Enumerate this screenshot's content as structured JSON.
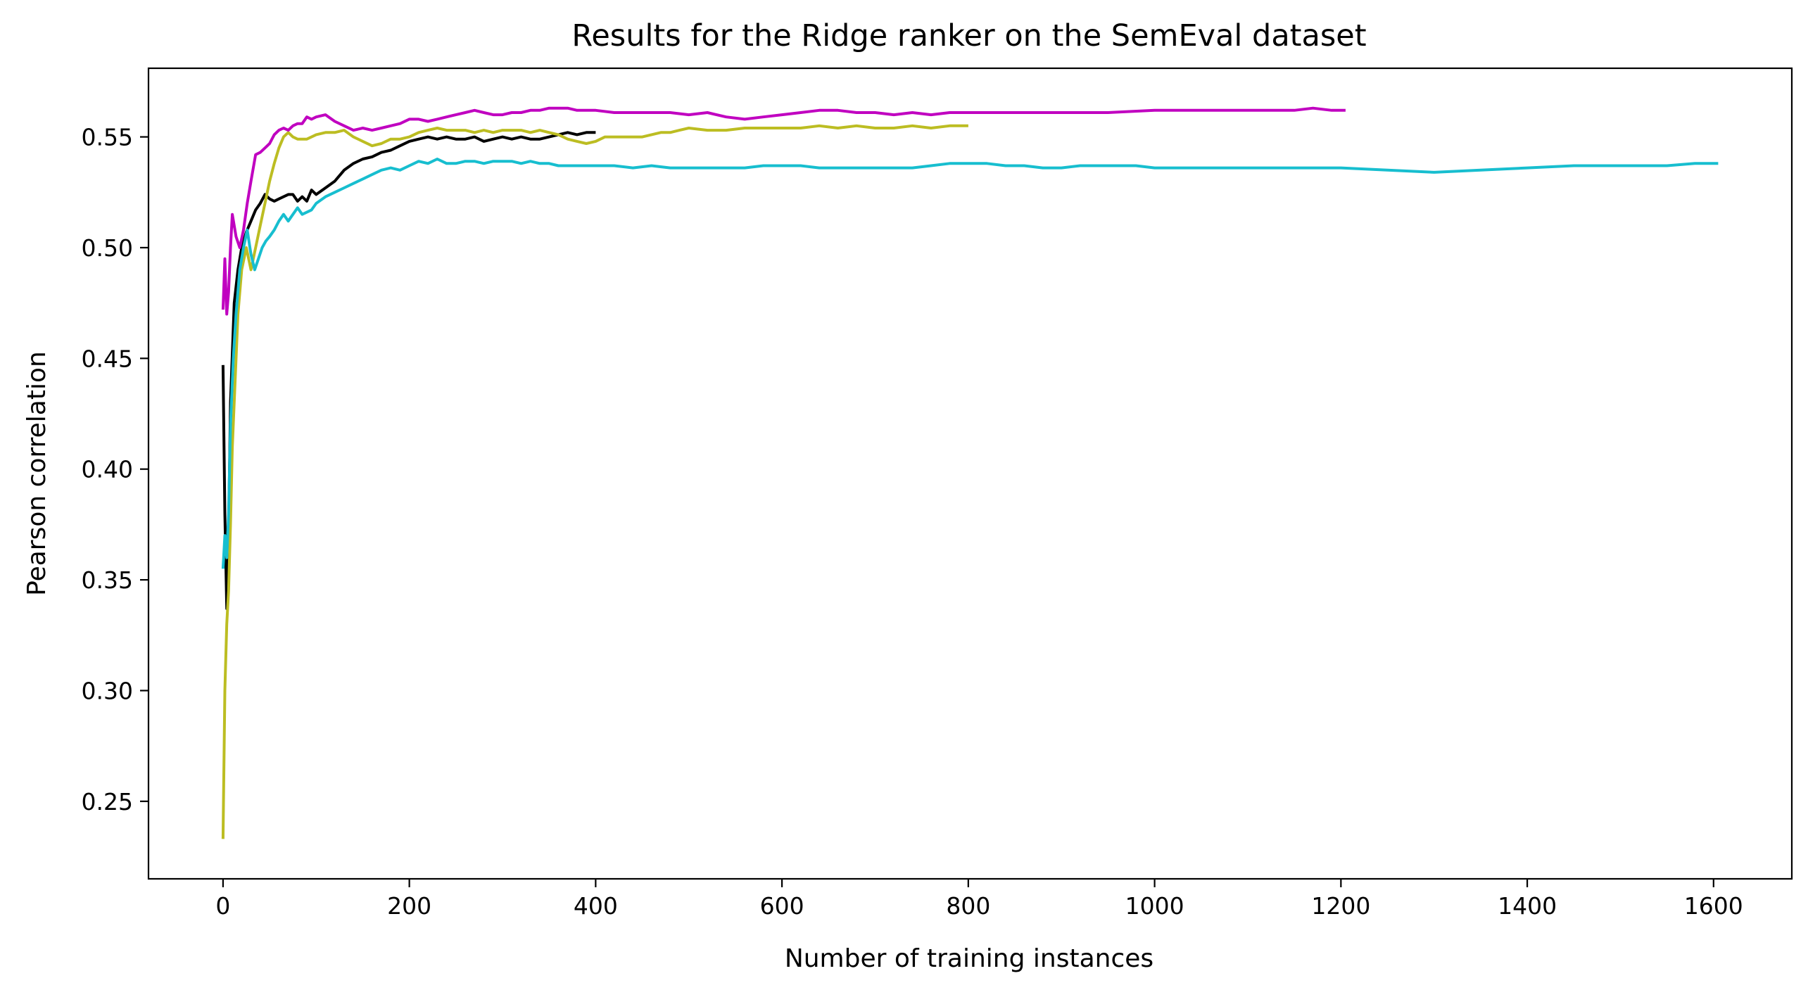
{
  "chart_data": {
    "type": "line",
    "title": "Results for the Ridge ranker on the SemEval dataset",
    "xlabel": "Number of training instances",
    "ylabel": "Pearson correlation",
    "xlim": [
      -80,
      1684
    ],
    "ylim": [
      0.215,
      0.581
    ],
    "xticks": [
      0,
      200,
      400,
      600,
      800,
      1000,
      1200,
      1400,
      1600
    ],
    "yticks": [
      0.25,
      0.3,
      0.35,
      0.4,
      0.45,
      0.5,
      0.55
    ],
    "ytick_labels": [
      "0.25",
      "0.30",
      "0.35",
      "0.40",
      "0.45",
      "0.50",
      "0.55"
    ],
    "grid": false,
    "legend": "none",
    "series": [
      {
        "color": "#000000",
        "points": [
          [
            0,
            0.447
          ],
          [
            2,
            0.38
          ],
          [
            4,
            0.337
          ],
          [
            6,
            0.37
          ],
          [
            8,
            0.43
          ],
          [
            12,
            0.475
          ],
          [
            16,
            0.49
          ],
          [
            20,
            0.5
          ],
          [
            25,
            0.507
          ],
          [
            30,
            0.512
          ],
          [
            35,
            0.517
          ],
          [
            40,
            0.52
          ],
          [
            45,
            0.524
          ],
          [
            50,
            0.522
          ],
          [
            55,
            0.521
          ],
          [
            60,
            0.522
          ],
          [
            65,
            0.523
          ],
          [
            70,
            0.524
          ],
          [
            75,
            0.524
          ],
          [
            80,
            0.521
          ],
          [
            85,
            0.523
          ],
          [
            90,
            0.521
          ],
          [
            95,
            0.526
          ],
          [
            100,
            0.524
          ],
          [
            110,
            0.527
          ],
          [
            120,
            0.53
          ],
          [
            130,
            0.535
          ],
          [
            140,
            0.538
          ],
          [
            150,
            0.54
          ],
          [
            160,
            0.541
          ],
          [
            170,
            0.543
          ],
          [
            180,
            0.544
          ],
          [
            190,
            0.546
          ],
          [
            200,
            0.548
          ],
          [
            210,
            0.549
          ],
          [
            220,
            0.55
          ],
          [
            230,
            0.549
          ],
          [
            240,
            0.55
          ],
          [
            250,
            0.549
          ],
          [
            260,
            0.549
          ],
          [
            270,
            0.55
          ],
          [
            280,
            0.548
          ],
          [
            290,
            0.549
          ],
          [
            300,
            0.55
          ],
          [
            310,
            0.549
          ],
          [
            320,
            0.55
          ],
          [
            330,
            0.549
          ],
          [
            340,
            0.549
          ],
          [
            350,
            0.55
          ],
          [
            360,
            0.551
          ],
          [
            370,
            0.552
          ],
          [
            380,
            0.551
          ],
          [
            390,
            0.552
          ],
          [
            400,
            0.552
          ]
        ]
      },
      {
        "color": "#bcbd22",
        "points": [
          [
            0,
            0.233
          ],
          [
            2,
            0.3
          ],
          [
            4,
            0.33
          ],
          [
            6,
            0.345
          ],
          [
            8,
            0.375
          ],
          [
            10,
            0.41
          ],
          [
            13,
            0.44
          ],
          [
            16,
            0.47
          ],
          [
            20,
            0.49
          ],
          [
            25,
            0.5
          ],
          [
            30,
            0.49
          ],
          [
            35,
            0.5
          ],
          [
            40,
            0.51
          ],
          [
            45,
            0.52
          ],
          [
            50,
            0.53
          ],
          [
            55,
            0.538
          ],
          [
            60,
            0.545
          ],
          [
            65,
            0.55
          ],
          [
            70,
            0.552
          ],
          [
            75,
            0.55
          ],
          [
            80,
            0.549
          ],
          [
            90,
            0.549
          ],
          [
            100,
            0.551
          ],
          [
            110,
            0.552
          ],
          [
            120,
            0.552
          ],
          [
            130,
            0.553
          ],
          [
            140,
            0.55
          ],
          [
            150,
            0.548
          ],
          [
            160,
            0.546
          ],
          [
            170,
            0.547
          ],
          [
            180,
            0.549
          ],
          [
            190,
            0.549
          ],
          [
            200,
            0.55
          ],
          [
            210,
            0.552
          ],
          [
            220,
            0.553
          ],
          [
            230,
            0.554
          ],
          [
            240,
            0.553
          ],
          [
            250,
            0.553
          ],
          [
            260,
            0.553
          ],
          [
            270,
            0.552
          ],
          [
            280,
            0.553
          ],
          [
            290,
            0.552
          ],
          [
            300,
            0.553
          ],
          [
            310,
            0.553
          ],
          [
            320,
            0.553
          ],
          [
            330,
            0.552
          ],
          [
            340,
            0.553
          ],
          [
            350,
            0.552
          ],
          [
            360,
            0.551
          ],
          [
            370,
            0.549
          ],
          [
            380,
            0.548
          ],
          [
            390,
            0.547
          ],
          [
            400,
            0.548
          ],
          [
            410,
            0.55
          ],
          [
            420,
            0.55
          ],
          [
            430,
            0.55
          ],
          [
            440,
            0.55
          ],
          [
            450,
            0.55
          ],
          [
            460,
            0.551
          ],
          [
            470,
            0.552
          ],
          [
            480,
            0.552
          ],
          [
            490,
            0.553
          ],
          [
            500,
            0.554
          ],
          [
            520,
            0.553
          ],
          [
            540,
            0.553
          ],
          [
            560,
            0.554
          ],
          [
            580,
            0.554
          ],
          [
            600,
            0.554
          ],
          [
            620,
            0.554
          ],
          [
            640,
            0.555
          ],
          [
            660,
            0.554
          ],
          [
            680,
            0.555
          ],
          [
            700,
            0.554
          ],
          [
            720,
            0.554
          ],
          [
            740,
            0.555
          ],
          [
            760,
            0.554
          ],
          [
            780,
            0.555
          ],
          [
            800,
            0.555
          ]
        ]
      },
      {
        "color": "#c000c0",
        "points": [
          [
            0,
            0.472
          ],
          [
            2,
            0.495
          ],
          [
            4,
            0.47
          ],
          [
            6,
            0.48
          ],
          [
            8,
            0.5
          ],
          [
            10,
            0.515
          ],
          [
            14,
            0.505
          ],
          [
            18,
            0.5
          ],
          [
            22,
            0.508
          ],
          [
            26,
            0.52
          ],
          [
            30,
            0.53
          ],
          [
            35,
            0.542
          ],
          [
            40,
            0.543
          ],
          [
            45,
            0.545
          ],
          [
            50,
            0.547
          ],
          [
            55,
            0.551
          ],
          [
            60,
            0.553
          ],
          [
            65,
            0.554
          ],
          [
            70,
            0.553
          ],
          [
            75,
            0.555
          ],
          [
            80,
            0.556
          ],
          [
            85,
            0.556
          ],
          [
            90,
            0.559
          ],
          [
            95,
            0.558
          ],
          [
            100,
            0.559
          ],
          [
            110,
            0.56
          ],
          [
            120,
            0.557
          ],
          [
            130,
            0.555
          ],
          [
            140,
            0.553
          ],
          [
            150,
            0.554
          ],
          [
            160,
            0.553
          ],
          [
            170,
            0.554
          ],
          [
            180,
            0.555
          ],
          [
            190,
            0.556
          ],
          [
            200,
            0.558
          ],
          [
            210,
            0.558
          ],
          [
            220,
            0.557
          ],
          [
            230,
            0.558
          ],
          [
            240,
            0.559
          ],
          [
            250,
            0.56
          ],
          [
            260,
            0.561
          ],
          [
            270,
            0.562
          ],
          [
            280,
            0.561
          ],
          [
            290,
            0.56
          ],
          [
            300,
            0.56
          ],
          [
            310,
            0.561
          ],
          [
            320,
            0.561
          ],
          [
            330,
            0.562
          ],
          [
            340,
            0.562
          ],
          [
            350,
            0.563
          ],
          [
            360,
            0.563
          ],
          [
            370,
            0.563
          ],
          [
            380,
            0.562
          ],
          [
            390,
            0.562
          ],
          [
            400,
            0.562
          ],
          [
            420,
            0.561
          ],
          [
            440,
            0.561
          ],
          [
            460,
            0.561
          ],
          [
            480,
            0.561
          ],
          [
            500,
            0.56
          ],
          [
            520,
            0.561
          ],
          [
            540,
            0.559
          ],
          [
            560,
            0.558
          ],
          [
            580,
            0.559
          ],
          [
            600,
            0.56
          ],
          [
            620,
            0.561
          ],
          [
            640,
            0.562
          ],
          [
            660,
            0.562
          ],
          [
            680,
            0.561
          ],
          [
            700,
            0.561
          ],
          [
            720,
            0.56
          ],
          [
            740,
            0.561
          ],
          [
            760,
            0.56
          ],
          [
            780,
            0.561
          ],
          [
            800,
            0.561
          ],
          [
            850,
            0.561
          ],
          [
            900,
            0.561
          ],
          [
            950,
            0.561
          ],
          [
            1000,
            0.562
          ],
          [
            1050,
            0.562
          ],
          [
            1100,
            0.562
          ],
          [
            1150,
            0.562
          ],
          [
            1170,
            0.563
          ],
          [
            1190,
            0.562
          ],
          [
            1205,
            0.562
          ]
        ]
      },
      {
        "color": "#17becf",
        "points": [
          [
            0,
            0.355
          ],
          [
            2,
            0.37
          ],
          [
            4,
            0.36
          ],
          [
            6,
            0.38
          ],
          [
            8,
            0.42
          ],
          [
            11,
            0.45
          ],
          [
            14,
            0.47
          ],
          [
            18,
            0.49
          ],
          [
            22,
            0.5
          ],
          [
            26,
            0.508
          ],
          [
            30,
            0.497
          ],
          [
            34,
            0.49
          ],
          [
            38,
            0.495
          ],
          [
            42,
            0.5
          ],
          [
            46,
            0.503
          ],
          [
            50,
            0.505
          ],
          [
            55,
            0.508
          ],
          [
            60,
            0.512
          ],
          [
            65,
            0.515
          ],
          [
            70,
            0.512
          ],
          [
            75,
            0.515
          ],
          [
            80,
            0.518
          ],
          [
            85,
            0.515
          ],
          [
            90,
            0.516
          ],
          [
            95,
            0.517
          ],
          [
            100,
            0.52
          ],
          [
            110,
            0.523
          ],
          [
            120,
            0.525
          ],
          [
            130,
            0.527
          ],
          [
            140,
            0.529
          ],
          [
            150,
            0.531
          ],
          [
            160,
            0.533
          ],
          [
            170,
            0.535
          ],
          [
            180,
            0.536
          ],
          [
            190,
            0.535
          ],
          [
            200,
            0.537
          ],
          [
            210,
            0.539
          ],
          [
            220,
            0.538
          ],
          [
            230,
            0.54
          ],
          [
            240,
            0.538
          ],
          [
            250,
            0.538
          ],
          [
            260,
            0.539
          ],
          [
            270,
            0.539
          ],
          [
            280,
            0.538
          ],
          [
            290,
            0.539
          ],
          [
            300,
            0.539
          ],
          [
            310,
            0.539
          ],
          [
            320,
            0.538
          ],
          [
            330,
            0.539
          ],
          [
            340,
            0.538
          ],
          [
            350,
            0.538
          ],
          [
            360,
            0.537
          ],
          [
            370,
            0.537
          ],
          [
            380,
            0.537
          ],
          [
            390,
            0.537
          ],
          [
            400,
            0.537
          ],
          [
            420,
            0.537
          ],
          [
            440,
            0.536
          ],
          [
            460,
            0.537
          ],
          [
            480,
            0.536
          ],
          [
            500,
            0.536
          ],
          [
            520,
            0.536
          ],
          [
            540,
            0.536
          ],
          [
            560,
            0.536
          ],
          [
            580,
            0.537
          ],
          [
            600,
            0.537
          ],
          [
            620,
            0.537
          ],
          [
            640,
            0.536
          ],
          [
            660,
            0.536
          ],
          [
            680,
            0.536
          ],
          [
            700,
            0.536
          ],
          [
            720,
            0.536
          ],
          [
            740,
            0.536
          ],
          [
            760,
            0.537
          ],
          [
            780,
            0.538
          ],
          [
            800,
            0.538
          ],
          [
            820,
            0.538
          ],
          [
            840,
            0.537
          ],
          [
            860,
            0.537
          ],
          [
            880,
            0.536
          ],
          [
            900,
            0.536
          ],
          [
            920,
            0.537
          ],
          [
            940,
            0.537
          ],
          [
            960,
            0.537
          ],
          [
            980,
            0.537
          ],
          [
            1000,
            0.536
          ],
          [
            1050,
            0.536
          ],
          [
            1100,
            0.536
          ],
          [
            1150,
            0.536
          ],
          [
            1200,
            0.536
          ],
          [
            1250,
            0.535
          ],
          [
            1300,
            0.534
          ],
          [
            1350,
            0.535
          ],
          [
            1400,
            0.536
          ],
          [
            1450,
            0.537
          ],
          [
            1500,
            0.537
          ],
          [
            1550,
            0.537
          ],
          [
            1580,
            0.538
          ],
          [
            1605,
            0.538
          ]
        ]
      }
    ]
  }
}
